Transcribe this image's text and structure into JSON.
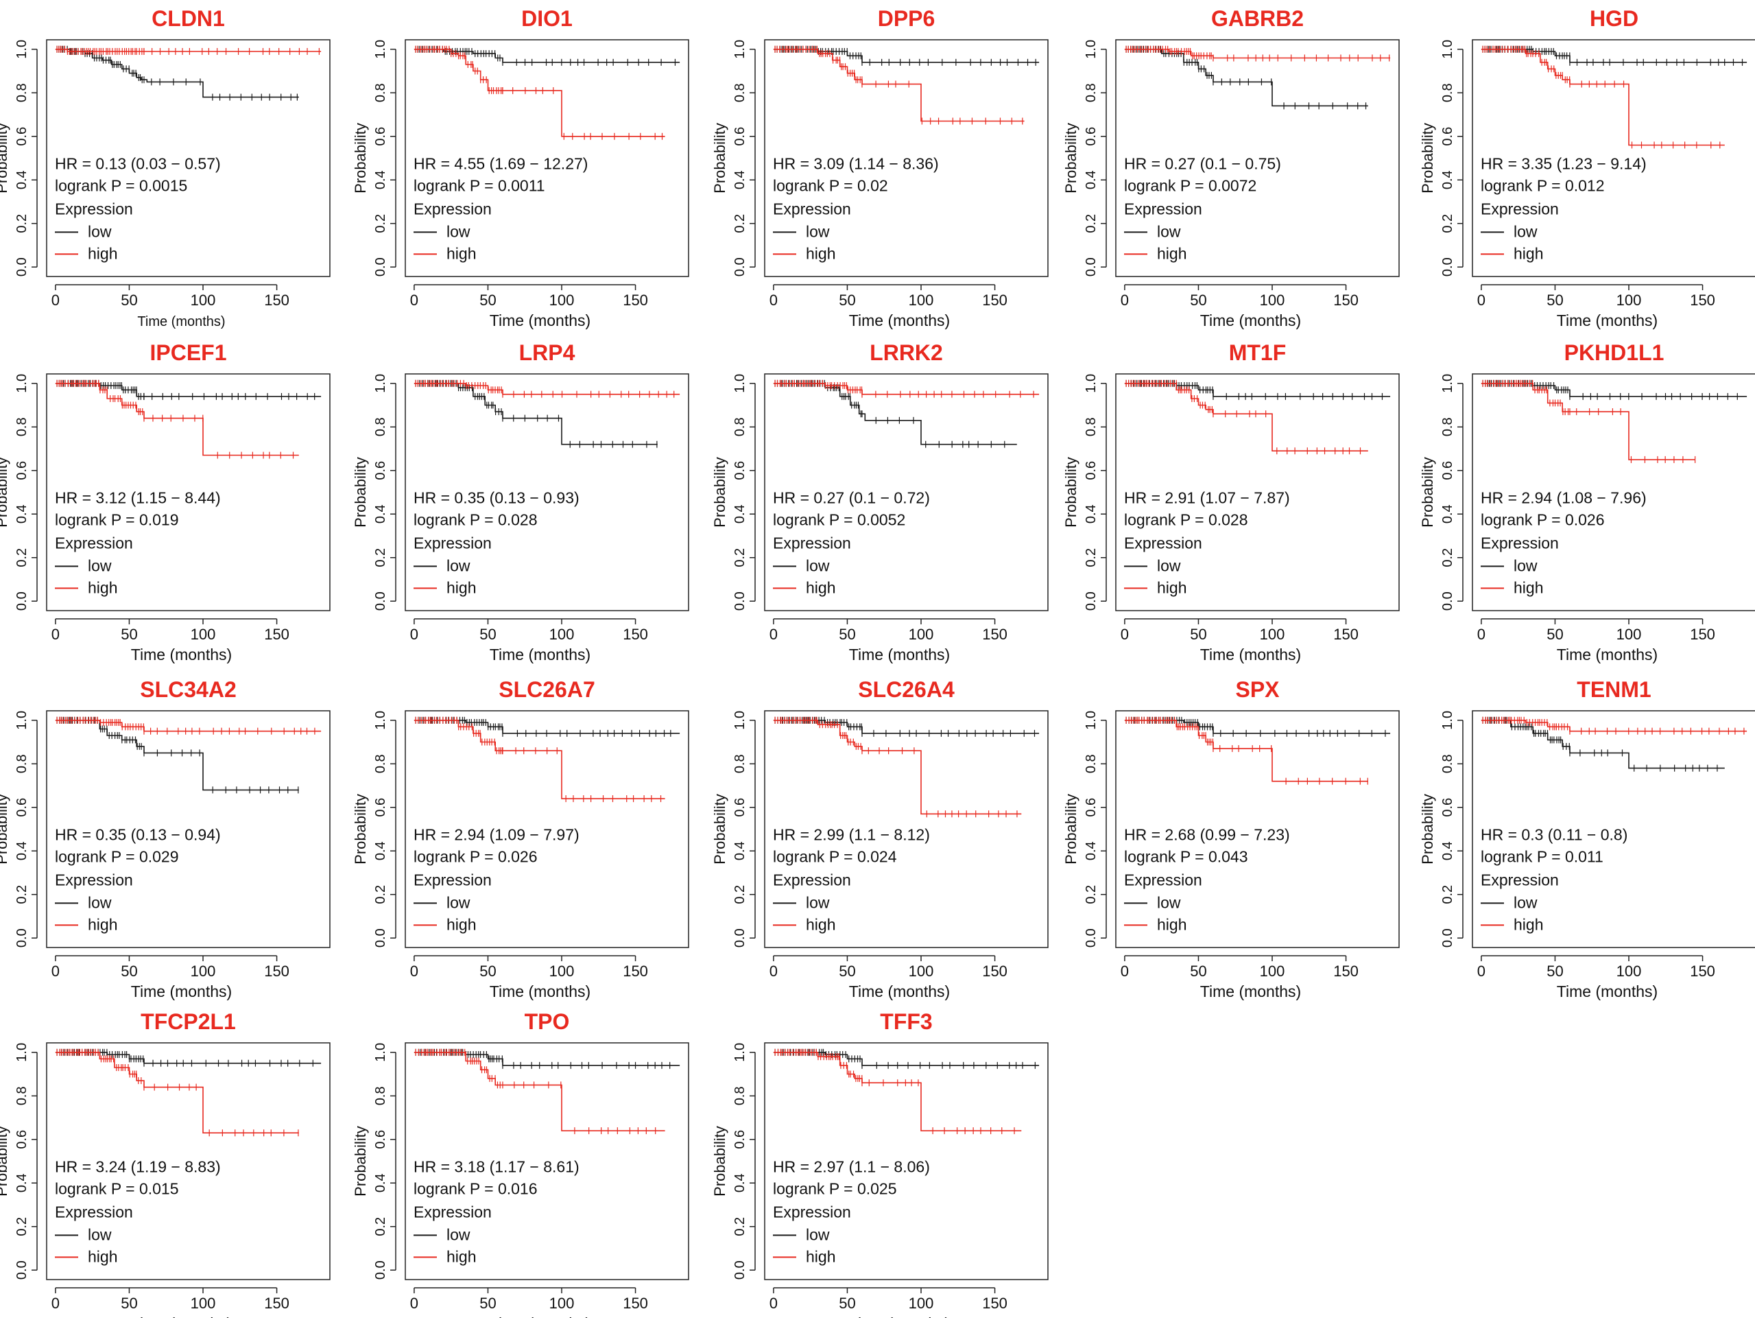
{
  "figure": {
    "colors": {
      "low": "#1a1a1a",
      "high": "#e8291f",
      "title": "#e8291f",
      "axis": "#222222"
    },
    "common": {
      "ylabel": "Probability",
      "xlabel": "Time (months)",
      "legend_title": "Expression",
      "legend_low": "low",
      "legend_high": "high",
      "x_ticks": [
        "0",
        "50",
        "100",
        "150"
      ],
      "y_ticks": [
        "0.0",
        "0.2",
        "0.4",
        "0.6",
        "0.8",
        "1.0"
      ]
    }
  },
  "chart_data": [
    {
      "type": "line",
      "title": "CLDN1",
      "hr": "HR = 0.13 (0.03 − 0.57)",
      "logrank": "logrank P = 0.0015",
      "xlabel": "Time (months)",
      "ylabel": "Probability",
      "xlim": [
        0,
        180
      ],
      "ylim": [
        0,
        1
      ],
      "series": [
        {
          "name": "low",
          "x": [
            0,
            10,
            20,
            25,
            32,
            38,
            45,
            50,
            55,
            58,
            62,
            100,
            165
          ],
          "y": [
            1,
            0.99,
            0.98,
            0.96,
            0.95,
            0.93,
            0.91,
            0.89,
            0.87,
            0.86,
            0.85,
            0.78,
            0.78
          ]
        },
        {
          "name": "high",
          "x": [
            0,
            8,
            180
          ],
          "y": [
            1,
            0.99,
            0.99
          ]
        }
      ]
    },
    {
      "type": "line",
      "title": "DIO1",
      "hr": "HR = 4.55 (1.69 − 12.27)",
      "logrank": "logrank P = 0.0011",
      "xlabel": "Time (months)",
      "ylabel": "Probability",
      "xlim": [
        0,
        180
      ],
      "ylim": [
        0,
        1
      ],
      "series": [
        {
          "name": "low",
          "x": [
            0,
            20,
            40,
            55,
            60,
            180
          ],
          "y": [
            1,
            0.99,
            0.98,
            0.96,
            0.94,
            0.94
          ]
        },
        {
          "name": "high",
          "x": [
            0,
            25,
            30,
            35,
            40,
            45,
            50,
            100,
            170
          ],
          "y": [
            1,
            0.98,
            0.97,
            0.93,
            0.9,
            0.86,
            0.81,
            0.6,
            0.6
          ]
        }
      ]
    },
    {
      "type": "line",
      "title": "DPP6",
      "hr": "HR = 3.09 (1.14 − 8.36)",
      "logrank": "logrank P = 0.02",
      "xlabel": "Time (months)",
      "ylabel": "Probability",
      "xlim": [
        0,
        180
      ],
      "ylim": [
        0,
        1
      ],
      "series": [
        {
          "name": "low",
          "x": [
            0,
            30,
            50,
            60,
            180
          ],
          "y": [
            1,
            0.99,
            0.97,
            0.94,
            0.94
          ]
        },
        {
          "name": "high",
          "x": [
            0,
            30,
            40,
            45,
            50,
            55,
            60,
            100,
            170
          ],
          "y": [
            1,
            0.98,
            0.95,
            0.92,
            0.89,
            0.86,
            0.84,
            0.67,
            0.67
          ]
        }
      ]
    },
    {
      "type": "line",
      "title": "GABRB2",
      "hr": "HR = 0.27 (0.1 − 0.75)",
      "logrank": "logrank P = 0.0072",
      "xlabel": "Time (months)",
      "ylabel": "Probability",
      "xlim": [
        0,
        180
      ],
      "ylim": [
        0,
        1
      ],
      "series": [
        {
          "name": "low",
          "x": [
            0,
            25,
            40,
            50,
            55,
            60,
            100,
            165
          ],
          "y": [
            1,
            0.98,
            0.94,
            0.91,
            0.88,
            0.85,
            0.74,
            0.74
          ]
        },
        {
          "name": "high",
          "x": [
            0,
            30,
            45,
            60,
            180
          ],
          "y": [
            1,
            0.99,
            0.97,
            0.96,
            0.96
          ]
        }
      ]
    },
    {
      "type": "line",
      "title": "HGD",
      "hr": "HR = 3.35 (1.23 − 9.14)",
      "logrank": "logrank P = 0.012",
      "xlabel": "Time (months)",
      "ylabel": "Probability",
      "xlim": [
        0,
        180
      ],
      "ylim": [
        0,
        1
      ],
      "series": [
        {
          "name": "low",
          "x": [
            0,
            35,
            50,
            60,
            180
          ],
          "y": [
            1,
            0.99,
            0.97,
            0.94,
            0.94
          ]
        },
        {
          "name": "high",
          "x": [
            0,
            30,
            40,
            45,
            50,
            55,
            60,
            100,
            165
          ],
          "y": [
            1,
            0.98,
            0.94,
            0.91,
            0.88,
            0.86,
            0.84,
            0.56,
            0.56
          ]
        }
      ]
    },
    {
      "type": "line",
      "title": "IPCEF1",
      "hr": "HR = 3.12 (1.15 − 8.44)",
      "logrank": "logrank P = 0.019",
      "xlabel": "Time (months)",
      "ylabel": "Probability",
      "xlim": [
        0,
        180
      ],
      "ylim": [
        0,
        1
      ],
      "series": [
        {
          "name": "low",
          "x": [
            0,
            30,
            45,
            55,
            180
          ],
          "y": [
            1,
            0.99,
            0.97,
            0.94,
            0.94
          ]
        },
        {
          "name": "high",
          "x": [
            0,
            30,
            35,
            45,
            55,
            60,
            100,
            165
          ],
          "y": [
            1,
            0.97,
            0.93,
            0.9,
            0.87,
            0.84,
            0.67,
            0.67
          ]
        }
      ]
    },
    {
      "type": "line",
      "title": "LRP4",
      "hr": "HR = 0.35 (0.13 − 0.93)",
      "logrank": "logrank P = 0.028",
      "xlabel": "Time (months)",
      "ylabel": "Probability",
      "xlim": [
        0,
        180
      ],
      "ylim": [
        0,
        1
      ],
      "series": [
        {
          "name": "low",
          "x": [
            0,
            30,
            40,
            48,
            55,
            60,
            100,
            165
          ],
          "y": [
            1,
            0.98,
            0.94,
            0.9,
            0.87,
            0.84,
            0.72,
            0.72
          ]
        },
        {
          "name": "high",
          "x": [
            0,
            35,
            50,
            60,
            180
          ],
          "y": [
            1,
            0.99,
            0.97,
            0.95,
            0.95
          ]
        }
      ]
    },
    {
      "type": "line",
      "title": "LRRK2",
      "hr": "HR = 0.27 (0.1 − 0.72)",
      "logrank": "logrank P = 0.0052",
      "xlabel": "Time (months)",
      "ylabel": "Probability",
      "xlim": [
        0,
        180
      ],
      "ylim": [
        0,
        1
      ],
      "series": [
        {
          "name": "low",
          "x": [
            0,
            35,
            45,
            52,
            58,
            62,
            100,
            165
          ],
          "y": [
            1,
            0.98,
            0.94,
            0.9,
            0.86,
            0.83,
            0.72,
            0.72
          ]
        },
        {
          "name": "high",
          "x": [
            0,
            35,
            50,
            60,
            180
          ],
          "y": [
            1,
            0.99,
            0.97,
            0.95,
            0.95
          ]
        }
      ]
    },
    {
      "type": "line",
      "title": "MT1F",
      "hr": "HR = 2.91 (1.07 − 7.87)",
      "logrank": "logrank P = 0.028",
      "xlabel": "Time (months)",
      "ylabel": "Probability",
      "xlim": [
        0,
        180
      ],
      "ylim": [
        0,
        1
      ],
      "series": [
        {
          "name": "low",
          "x": [
            0,
            35,
            50,
            60,
            180
          ],
          "y": [
            1,
            0.99,
            0.97,
            0.94,
            0.94
          ]
        },
        {
          "name": "high",
          "x": [
            0,
            35,
            45,
            50,
            55,
            60,
            100,
            165
          ],
          "y": [
            1,
            0.97,
            0.93,
            0.9,
            0.88,
            0.86,
            0.69,
            0.69
          ]
        }
      ]
    },
    {
      "type": "line",
      "title": "PKHD1L1",
      "hr": "HR = 2.94 (1.08 − 7.96)",
      "logrank": "logrank P = 0.026",
      "xlabel": "Time (months)",
      "ylabel": "Probability",
      "xlim": [
        0,
        180
      ],
      "ylim": [
        0,
        1
      ],
      "series": [
        {
          "name": "low",
          "x": [
            0,
            35,
            50,
            60,
            180
          ],
          "y": [
            1,
            0.99,
            0.97,
            0.94,
            0.94
          ]
        },
        {
          "name": "high",
          "x": [
            0,
            35,
            45,
            55,
            100,
            145
          ],
          "y": [
            1,
            0.97,
            0.91,
            0.87,
            0.65,
            0.65
          ]
        }
      ]
    },
    {
      "type": "line",
      "title": "SLC34A2",
      "hr": "HR = 0.35 (0.13 − 0.94)",
      "logrank": "logrank P = 0.029",
      "xlabel": "Time (months)",
      "ylabel": "Probability",
      "xlim": [
        0,
        180
      ],
      "ylim": [
        0,
        1
      ],
      "series": [
        {
          "name": "low",
          "x": [
            0,
            30,
            35,
            45,
            55,
            60,
            100,
            165
          ],
          "y": [
            1,
            0.96,
            0.93,
            0.91,
            0.88,
            0.85,
            0.68,
            0.68
          ]
        },
        {
          "name": "high",
          "x": [
            0,
            30,
            45,
            60,
            180
          ],
          "y": [
            1,
            0.99,
            0.97,
            0.95,
            0.95
          ]
        }
      ]
    },
    {
      "type": "line",
      "title": "SLC26A7",
      "hr": "HR = 2.94 (1.09 − 7.97)",
      "logrank": "logrank P = 0.026",
      "xlabel": "Time (months)",
      "ylabel": "Probability",
      "xlim": [
        0,
        180
      ],
      "ylim": [
        0,
        1
      ],
      "series": [
        {
          "name": "low",
          "x": [
            0,
            35,
            50,
            60,
            180
          ],
          "y": [
            1,
            0.99,
            0.97,
            0.94,
            0.94
          ]
        },
        {
          "name": "high",
          "x": [
            0,
            30,
            40,
            45,
            55,
            100,
            170
          ],
          "y": [
            1,
            0.97,
            0.94,
            0.9,
            0.86,
            0.64,
            0.64
          ]
        }
      ]
    },
    {
      "type": "line",
      "title": "SLC26A4",
      "hr": "HR = 2.99 (1.1 − 8.12)",
      "logrank": "logrank P = 0.024",
      "xlabel": "Time (months)",
      "ylabel": "Probability",
      "xlim": [
        0,
        180
      ],
      "ylim": [
        0,
        1
      ],
      "series": [
        {
          "name": "low",
          "x": [
            0,
            35,
            50,
            60,
            180
          ],
          "y": [
            1,
            0.99,
            0.97,
            0.94,
            0.94
          ]
        },
        {
          "name": "high",
          "x": [
            0,
            30,
            45,
            50,
            55,
            60,
            100,
            168
          ],
          "y": [
            1,
            0.98,
            0.93,
            0.9,
            0.88,
            0.86,
            0.57,
            0.57
          ]
        }
      ]
    },
    {
      "type": "line",
      "title": "SPX",
      "hr": "HR = 2.68 (0.99 − 7.23)",
      "logrank": "logrank P = 0.043",
      "xlabel": "Time (months)",
      "ylabel": "Probability",
      "xlim": [
        0,
        180
      ],
      "ylim": [
        0,
        1
      ],
      "series": [
        {
          "name": "low",
          "x": [
            0,
            40,
            50,
            60,
            180
          ],
          "y": [
            1,
            0.99,
            0.97,
            0.94,
            0.94
          ]
        },
        {
          "name": "high",
          "x": [
            0,
            35,
            50,
            55,
            60,
            100,
            165
          ],
          "y": [
            1,
            0.97,
            0.93,
            0.9,
            0.87,
            0.72,
            0.72
          ]
        }
      ]
    },
    {
      "type": "line",
      "title": "TENM1",
      "hr": "HR = 0.3 (0.11 − 0.8)",
      "logrank": "logrank P = 0.011",
      "xlabel": "Time (months)",
      "ylabel": "Probability",
      "xlim": [
        0,
        180
      ],
      "ylim": [
        0,
        1
      ],
      "series": [
        {
          "name": "low",
          "x": [
            0,
            20,
            35,
            45,
            55,
            60,
            100,
            165
          ],
          "y": [
            1,
            0.97,
            0.94,
            0.91,
            0.88,
            0.85,
            0.78,
            0.78
          ]
        },
        {
          "name": "high",
          "x": [
            0,
            30,
            45,
            60,
            180
          ],
          "y": [
            1,
            0.99,
            0.97,
            0.95,
            0.95
          ]
        }
      ]
    },
    {
      "type": "line",
      "title": "TFCP2L1",
      "hr": "HR = 3.24 (1.19 − 8.83)",
      "logrank": "logrank P = 0.015",
      "xlabel": "Time (months)",
      "ylabel": "Probability",
      "xlim": [
        0,
        180
      ],
      "ylim": [
        0,
        1
      ],
      "series": [
        {
          "name": "low",
          "x": [
            0,
            35,
            50,
            60,
            180
          ],
          "y": [
            1,
            0.99,
            0.97,
            0.95,
            0.95
          ]
        },
        {
          "name": "high",
          "x": [
            0,
            30,
            40,
            50,
            55,
            60,
            100,
            165
          ],
          "y": [
            1,
            0.97,
            0.93,
            0.9,
            0.87,
            0.84,
            0.63,
            0.63
          ]
        }
      ]
    },
    {
      "type": "line",
      "title": "TPO",
      "hr": "HR = 3.18 (1.17 − 8.61)",
      "logrank": "logrank P = 0.016",
      "xlabel": "Time (months)",
      "ylabel": "Probability",
      "xlim": [
        0,
        180
      ],
      "ylim": [
        0,
        1
      ],
      "series": [
        {
          "name": "low",
          "x": [
            0,
            35,
            50,
            60,
            180
          ],
          "y": [
            1,
            0.99,
            0.97,
            0.94,
            0.94
          ]
        },
        {
          "name": "high",
          "x": [
            0,
            35,
            45,
            50,
            55,
            100,
            170
          ],
          "y": [
            1,
            0.96,
            0.92,
            0.88,
            0.85,
            0.64,
            0.64
          ]
        }
      ]
    },
    {
      "type": "line",
      "title": "TFF3",
      "hr": "HR = 2.97 (1.1 − 8.06)",
      "logrank": "logrank P = 0.025",
      "xlabel": "Time (months)",
      "ylabel": "Probability",
      "xlim": [
        0,
        180
      ],
      "ylim": [
        0,
        1
      ],
      "series": [
        {
          "name": "low",
          "x": [
            0,
            35,
            50,
            60,
            180
          ],
          "y": [
            1,
            0.99,
            0.97,
            0.94,
            0.94
          ]
        },
        {
          "name": "high",
          "x": [
            0,
            30,
            45,
            50,
            55,
            60,
            100,
            168
          ],
          "y": [
            1,
            0.98,
            0.94,
            0.9,
            0.88,
            0.86,
            0.64,
            0.64
          ]
        }
      ]
    }
  ]
}
